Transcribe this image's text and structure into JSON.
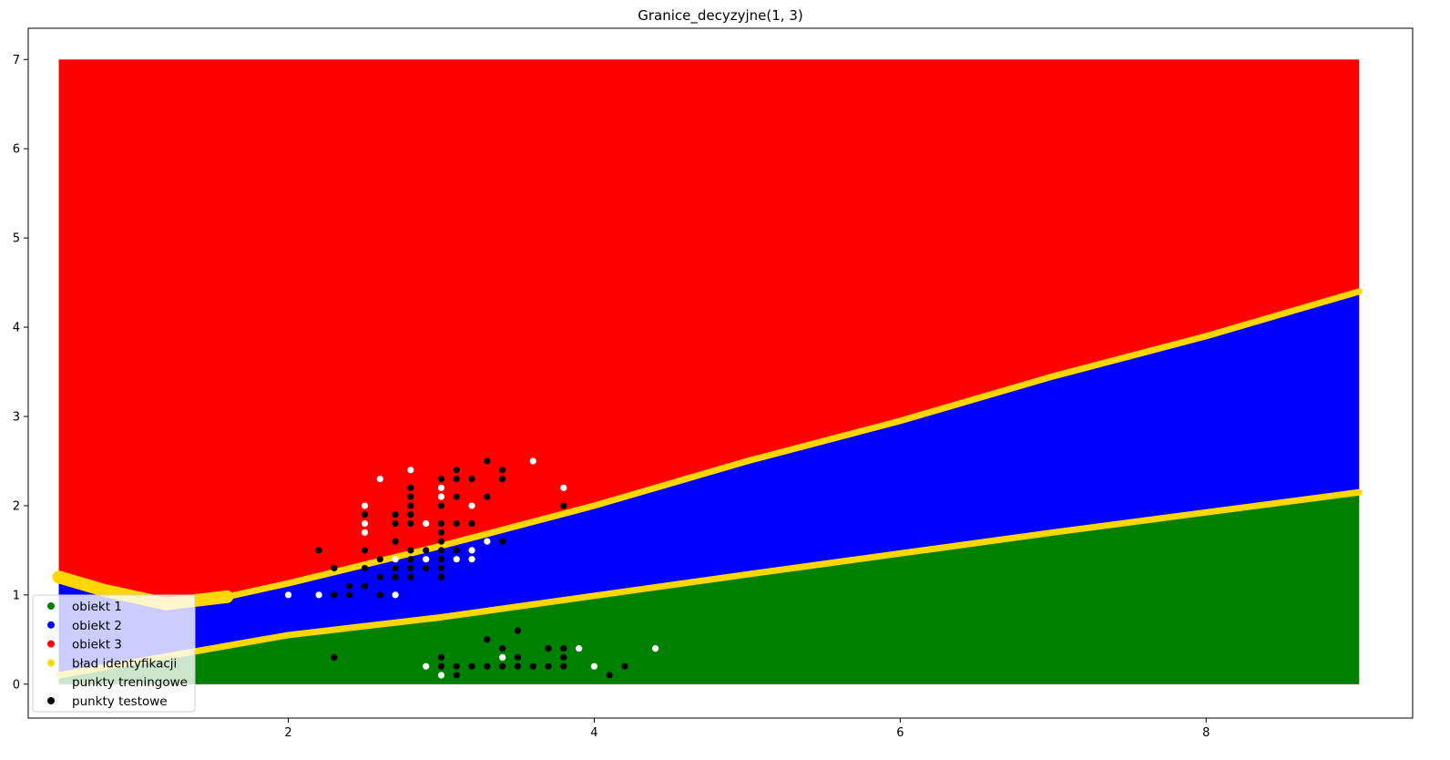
{
  "chart_data": {
    "type": "scatter",
    "title": "Granice_decyzyjne(1, 3)",
    "xlabel": "",
    "ylabel": "",
    "xlim": [
      0.3,
      9.35
    ],
    "ylim": [
      -0.38,
      7.35
    ],
    "xticks": [
      2,
      4,
      6,
      8
    ],
    "yticks": [
      0,
      1,
      2,
      3,
      4,
      5,
      6,
      7
    ],
    "grid": false,
    "legend_position": "lower-left",
    "regions": {
      "x_range": [
        0.5,
        9.0
      ],
      "y_range": [
        0.0,
        7.0
      ],
      "boundary_1_2": [
        [
          0.5,
          0.1
        ],
        [
          1.0,
          0.25
        ],
        [
          2.0,
          0.55
        ],
        [
          3.0,
          0.75
        ],
        [
          5.0,
          1.23
        ],
        [
          7.0,
          1.7
        ],
        [
          9.0,
          2.15
        ]
      ],
      "boundary_2_3_left": [
        [
          0.5,
          1.2
        ],
        [
          0.8,
          1.05
        ],
        [
          1.2,
          0.9
        ],
        [
          1.6,
          0.98
        ]
      ],
      "boundary_2_3": [
        [
          1.6,
          0.98
        ],
        [
          2.0,
          1.13
        ],
        [
          3.0,
          1.55
        ],
        [
          4.0,
          2.0
        ],
        [
          5.0,
          2.5
        ],
        [
          6.0,
          2.95
        ],
        [
          7.0,
          3.45
        ],
        [
          8.0,
          3.9
        ],
        [
          9.0,
          4.4
        ]
      ]
    },
    "series": [
      {
        "name": "obiekt 1",
        "color": "#008000"
      },
      {
        "name": "obiekt 2",
        "color": "#0000ff"
      },
      {
        "name": "obiekt 3",
        "color": "#ff0000"
      },
      {
        "name": "bład identyfikacji",
        "color": "#ffd700"
      },
      {
        "name": "punkty treningowe",
        "color": "#ffffff",
        "points": [
          [
            2.0,
            1.0
          ],
          [
            2.2,
            1.0
          ],
          [
            2.6,
            2.3
          ],
          [
            2.5,
            2.0
          ],
          [
            2.5,
            1.8
          ],
          [
            2.5,
            1.7
          ],
          [
            2.7,
            1.4
          ],
          [
            2.7,
            1.0
          ],
          [
            2.8,
            2.4
          ],
          [
            2.9,
            1.8
          ],
          [
            2.9,
            1.4
          ],
          [
            3.0,
            2.2
          ],
          [
            3.0,
            2.1
          ],
          [
            3.1,
            1.4
          ],
          [
            3.2,
            2.0
          ],
          [
            3.2,
            1.5
          ],
          [
            3.2,
            1.4
          ],
          [
            3.3,
            1.6
          ],
          [
            3.6,
            2.5
          ],
          [
            3.8,
            2.2
          ],
          [
            2.9,
            0.2
          ],
          [
            3.0,
            0.1
          ],
          [
            3.4,
            0.3
          ],
          [
            3.9,
            0.4
          ],
          [
            4.0,
            0.2
          ],
          [
            4.4,
            0.4
          ]
        ]
      },
      {
        "name": "punkty testowe",
        "color": "#000000",
        "points": [
          [
            2.2,
            1.5
          ],
          [
            2.3,
            1.3
          ],
          [
            2.3,
            1.0
          ],
          [
            2.4,
            1.1
          ],
          [
            2.4,
            1.0
          ],
          [
            2.5,
            1.9
          ],
          [
            2.5,
            1.5
          ],
          [
            2.5,
            1.3
          ],
          [
            2.5,
            1.1
          ],
          [
            2.6,
            1.4
          ],
          [
            2.6,
            1.2
          ],
          [
            2.6,
            1.0
          ],
          [
            2.7,
            1.9
          ],
          [
            2.7,
            1.8
          ],
          [
            2.7,
            1.6
          ],
          [
            2.7,
            1.3
          ],
          [
            2.7,
            1.2
          ],
          [
            2.8,
            2.2
          ],
          [
            2.8,
            2.1
          ],
          [
            2.8,
            2.0
          ],
          [
            2.8,
            1.9
          ],
          [
            2.8,
            1.8
          ],
          [
            2.8,
            1.5
          ],
          [
            2.8,
            1.4
          ],
          [
            2.8,
            1.3
          ],
          [
            2.8,
            1.2
          ],
          [
            2.9,
            1.5
          ],
          [
            2.9,
            1.3
          ],
          [
            3.0,
            2.3
          ],
          [
            3.0,
            2.0
          ],
          [
            3.0,
            1.8
          ],
          [
            3.0,
            1.7
          ],
          [
            3.0,
            1.6
          ],
          [
            3.0,
            1.5
          ],
          [
            3.0,
            1.4
          ],
          [
            3.0,
            1.3
          ],
          [
            3.0,
            1.2
          ],
          [
            3.1,
            2.4
          ],
          [
            3.1,
            2.3
          ],
          [
            3.1,
            2.1
          ],
          [
            3.1,
            1.8
          ],
          [
            3.1,
            1.5
          ],
          [
            3.2,
            2.3
          ],
          [
            3.2,
            1.8
          ],
          [
            3.3,
            2.5
          ],
          [
            3.3,
            2.1
          ],
          [
            3.4,
            2.4
          ],
          [
            3.4,
            2.3
          ],
          [
            3.4,
            1.6
          ],
          [
            3.8,
            2.0
          ],
          [
            2.3,
            0.3
          ],
          [
            3.0,
            0.3
          ],
          [
            3.0,
            0.2
          ],
          [
            3.1,
            0.2
          ],
          [
            3.1,
            0.1
          ],
          [
            3.2,
            0.2
          ],
          [
            3.3,
            0.5
          ],
          [
            3.3,
            0.2
          ],
          [
            3.4,
            0.4
          ],
          [
            3.4,
            0.2
          ],
          [
            3.5,
            0.6
          ],
          [
            3.5,
            0.3
          ],
          [
            3.5,
            0.2
          ],
          [
            3.6,
            0.2
          ],
          [
            3.7,
            0.4
          ],
          [
            3.7,
            0.2
          ],
          [
            3.8,
            0.4
          ],
          [
            3.8,
            0.3
          ],
          [
            3.8,
            0.2
          ],
          [
            4.1,
            0.1
          ],
          [
            4.2,
            0.2
          ]
        ]
      }
    ]
  }
}
